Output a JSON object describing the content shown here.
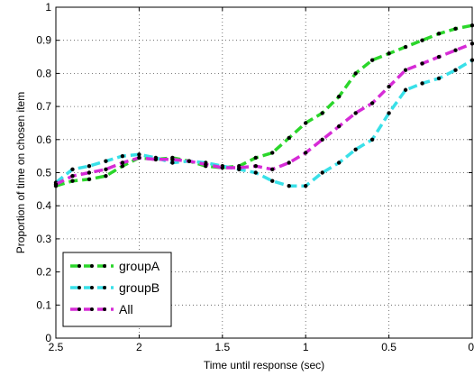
{
  "chart_data": {
    "type": "line",
    "xlabel": "Time until response (sec)",
    "ylabel": "Proportion of time on chosen item",
    "xlim": [
      2.5,
      0
    ],
    "ylim": [
      0,
      1
    ],
    "x_reversed": true,
    "grid": "dotted",
    "legend_position": "bottom-left",
    "xticks": [
      {
        "value": 2.5,
        "label": "2.5"
      },
      {
        "value": 2,
        "label": "2"
      },
      {
        "value": 1.5,
        "label": "1.5"
      },
      {
        "value": 1,
        "label": "1"
      },
      {
        "value": 0.5,
        "label": "0.5"
      },
      {
        "value": 0,
        "label": "0"
      }
    ],
    "yticks": [
      {
        "value": 0,
        "label": "0"
      },
      {
        "value": 0.1,
        "label": "0.1"
      },
      {
        "value": 0.2,
        "label": "0.2"
      },
      {
        "value": 0.3,
        "label": "0.3"
      },
      {
        "value": 0.4,
        "label": "0.4"
      },
      {
        "value": 0.5,
        "label": "0.5"
      },
      {
        "value": 0.6,
        "label": "0.6"
      },
      {
        "value": 0.7,
        "label": "0.7"
      },
      {
        "value": 0.8,
        "label": "0.8"
      },
      {
        "value": 0.9,
        "label": "0.9"
      },
      {
        "value": 1,
        "label": "1"
      }
    ],
    "series": [
      {
        "name": "groupA",
        "color": "#2bd62b",
        "x": [
          2.5,
          2.4,
          2.3,
          2.2,
          2.1,
          2.0,
          1.9,
          1.8,
          1.7,
          1.6,
          1.5,
          1.4,
          1.3,
          1.2,
          1.1,
          1.0,
          0.9,
          0.8,
          0.7,
          0.6,
          0.5,
          0.4,
          0.3,
          0.2,
          0.1,
          0.0
        ],
        "y": [
          0.46,
          0.475,
          0.48,
          0.49,
          0.52,
          0.545,
          0.54,
          0.545,
          0.535,
          0.52,
          0.515,
          0.52,
          0.545,
          0.56,
          0.605,
          0.65,
          0.68,
          0.73,
          0.8,
          0.84,
          0.86,
          0.88,
          0.9,
          0.92,
          0.935,
          0.945
        ]
      },
      {
        "name": "groupB",
        "color": "#39e0e8",
        "x": [
          2.5,
          2.4,
          2.3,
          2.2,
          2.1,
          2.0,
          1.9,
          1.8,
          1.7,
          1.6,
          1.5,
          1.4,
          1.3,
          1.2,
          1.1,
          1.0,
          0.9,
          0.8,
          0.7,
          0.6,
          0.5,
          0.4,
          0.3,
          0.2,
          0.1,
          0.0
        ],
        "y": [
          0.47,
          0.51,
          0.52,
          0.535,
          0.55,
          0.555,
          0.545,
          0.53,
          0.535,
          0.53,
          0.52,
          0.51,
          0.5,
          0.475,
          0.46,
          0.46,
          0.5,
          0.53,
          0.57,
          0.6,
          0.68,
          0.75,
          0.77,
          0.785,
          0.81,
          0.84
        ]
      },
      {
        "name": "All",
        "color": "#d62bd6",
        "x": [
          2.5,
          2.4,
          2.3,
          2.2,
          2.1,
          2.0,
          1.9,
          1.8,
          1.7,
          1.6,
          1.5,
          1.4,
          1.3,
          1.2,
          1.1,
          1.0,
          0.9,
          0.8,
          0.7,
          0.6,
          0.5,
          0.4,
          0.3,
          0.2,
          0.1,
          0.0
        ],
        "y": [
          0.465,
          0.49,
          0.5,
          0.51,
          0.53,
          0.545,
          0.54,
          0.54,
          0.535,
          0.525,
          0.515,
          0.515,
          0.52,
          0.51,
          0.53,
          0.56,
          0.6,
          0.64,
          0.68,
          0.71,
          0.76,
          0.81,
          0.83,
          0.85,
          0.87,
          0.89
        ]
      }
    ]
  }
}
